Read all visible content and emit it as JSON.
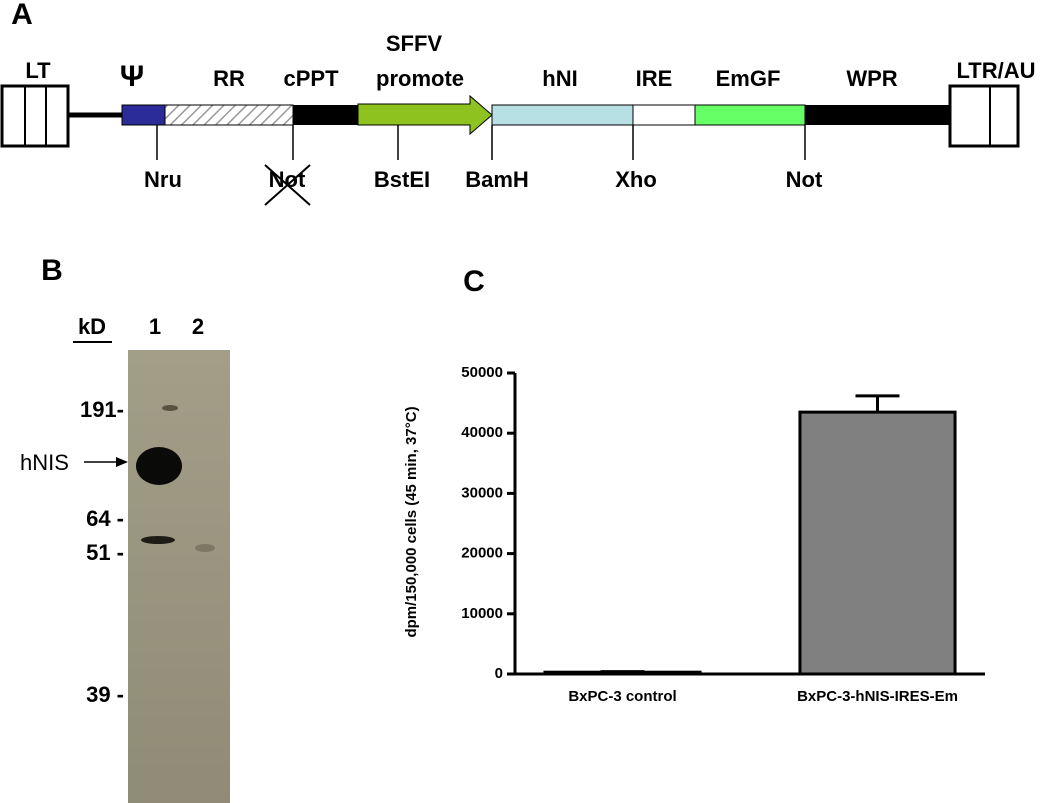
{
  "panel_a": {
    "letter": "A",
    "top_labels": [
      "LT",
      "Ψ",
      "RR",
      "cPPT",
      "SFFV",
      "promote",
      "hNI",
      "IRE",
      "EmGF",
      "WPR",
      "LTR/AU"
    ],
    "sites": [
      "Nru",
      "Not",
      "BstEI",
      "BamH",
      "Xho",
      "Not"
    ]
  },
  "panel_b": {
    "letter": "B",
    "unit": "kD",
    "lanes": [
      "1",
      "2"
    ],
    "markers": [
      "191-",
      "64 -",
      "51 -",
      "39 -"
    ],
    "band_label": "hNIS"
  },
  "chart_data": {
    "type": "bar",
    "letter": "C",
    "y_label": "dpm/150,000 cells (45 min, 37°C)",
    "categories": [
      "BxPC-3 control",
      "BxPC-3-hNIS-IRES-Em"
    ],
    "values": [
      300,
      43500
    ],
    "errors": [
      100,
      2700
    ],
    "color": "#808080",
    "ylim": [
      0,
      50000
    ],
    "yticks": [
      0,
      10000,
      20000,
      30000,
      40000,
      50000
    ]
  }
}
